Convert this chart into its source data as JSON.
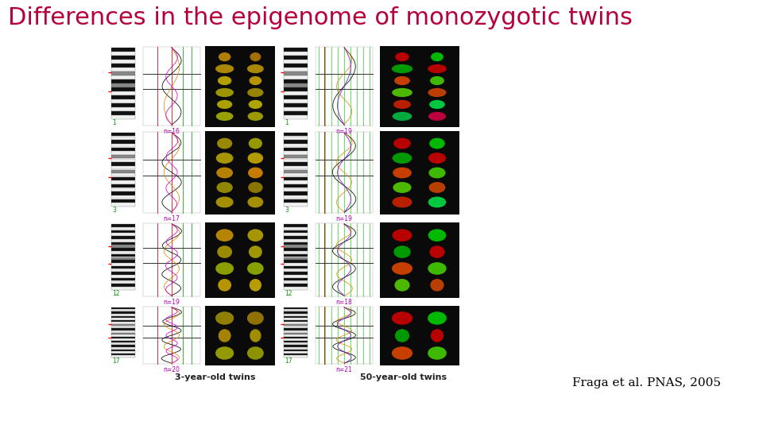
{
  "title": "Differences in the epigenome of monozygotic twins",
  "title_color": "#b5003c",
  "title_fontsize": 22,
  "citation": "Fraga et al. PNAS, 2005",
  "citation_color": "#000000",
  "citation_fontsize": 11,
  "background_color": "#ffffff",
  "label_3yr": "3-year-old twins",
  "label_50yr": "50-year-old twins",
  "chrom_nums_left": [
    "1",
    "3",
    "12",
    "17"
  ],
  "chrom_nums_right": [
    "1",
    "3",
    "12",
    "17"
  ],
  "n_labels_left": [
    "n=16",
    "n=17",
    "n=19",
    "n=20"
  ],
  "n_labels_right": [
    "n=19",
    "n=19",
    "n=18",
    "n=21"
  ]
}
